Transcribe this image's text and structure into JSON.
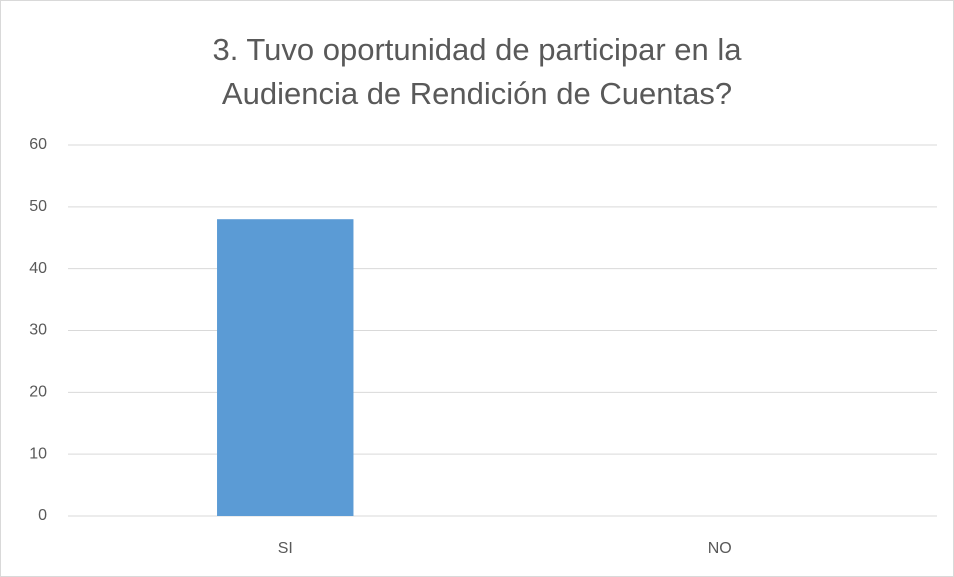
{
  "chart_data": {
    "type": "bar",
    "title": "3. Tuvo oportunidad de participar en la\nAudiencia de Rendición de Cuentas?",
    "categories": [
      "SI",
      "NO"
    ],
    "values": [
      48,
      0
    ],
    "color": "#5b9bd5",
    "ylim": [
      0,
      60
    ],
    "yticks": [
      0,
      10,
      20,
      30,
      40,
      50,
      60
    ],
    "grid": true
  }
}
